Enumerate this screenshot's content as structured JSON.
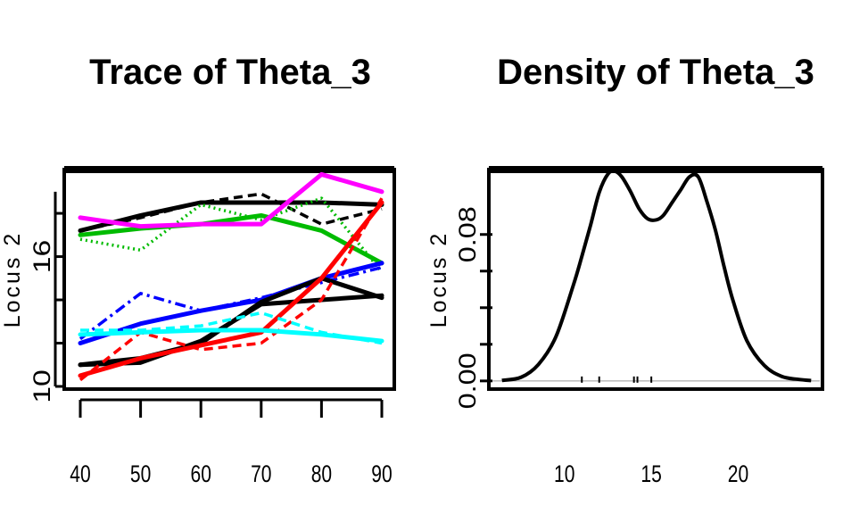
{
  "chart_data": [
    {
      "type": "line",
      "title": "Trace of Theta_3",
      "xlabel": "",
      "ylabel": "Locus 2",
      "x_ticks": [
        "40",
        "50",
        "60",
        "70",
        "80",
        "90"
      ],
      "y_ticks": [
        "10",
        "16"
      ],
      "xlim": [
        40,
        90
      ],
      "ylim": [
        10,
        19.9
      ],
      "x": [
        40,
        50,
        60,
        70,
        80,
        90
      ],
      "series": [
        {
          "color": "#000000",
          "style": "solid",
          "values": [
            17.2,
            17.9,
            18.5,
            18.5,
            18.5,
            18.4
          ]
        },
        {
          "color": "#000000",
          "style": "dashed",
          "values": [
            17.2,
            17.8,
            18.5,
            18.9,
            17.5,
            18.2
          ]
        },
        {
          "color": "#00bb00",
          "style": "solid",
          "values": [
            17.0,
            17.3,
            17.5,
            17.9,
            17.2,
            15.7
          ]
        },
        {
          "color": "#00bb00",
          "style": "dotted",
          "values": [
            16.8,
            16.3,
            18.4,
            17.7,
            18.7,
            15.3
          ]
        },
        {
          "color": "#ff00ff",
          "style": "solid",
          "values": [
            17.8,
            17.4,
            17.5,
            17.5,
            19.8,
            19.0
          ]
        },
        {
          "color": "#0000ff",
          "style": "solid",
          "values": [
            12.0,
            12.9,
            13.5,
            14.0,
            15.0,
            15.7
          ]
        },
        {
          "color": "#0000ff",
          "style": "dashdot",
          "values": [
            12.2,
            14.3,
            13.5,
            14.1,
            14.8,
            15.5
          ]
        },
        {
          "color": "#000000",
          "style": "solid",
          "values": [
            11.0,
            11.1,
            12.1,
            13.8,
            14.0,
            14.2
          ]
        },
        {
          "color": "#000000",
          "style": "solid",
          "values": [
            11.0,
            11.3,
            12.0,
            13.9,
            15.0,
            14.1
          ]
        },
        {
          "color": "#ff0000",
          "style": "solid",
          "values": [
            10.5,
            11.3,
            11.9,
            12.5,
            15.0,
            18.5
          ]
        },
        {
          "color": "#ff0000",
          "style": "dashed",
          "values": [
            10.3,
            12.5,
            11.7,
            12.0,
            14.0,
            18.7
          ]
        },
        {
          "color": "#00ffff",
          "style": "solid",
          "values": [
            12.4,
            12.5,
            12.6,
            12.6,
            12.4,
            12.1
          ]
        },
        {
          "color": "#00ffff",
          "style": "dashed",
          "values": [
            12.6,
            12.6,
            12.8,
            13.4,
            12.5,
            12.0
          ]
        }
      ]
    },
    {
      "type": "line",
      "title": "Density of Theta_3",
      "xlabel": "",
      "ylabel": "Locus 2",
      "x_ticks": [
        "10",
        "15",
        "20"
      ],
      "y_ticks": [
        "0.00",
        "0.08"
      ],
      "xlim": [
        5.8,
        24.7
      ],
      "ylim": [
        -0.003,
        0.114
      ],
      "density": {
        "x": [
          6.4,
          7.5,
          8.5,
          9.5,
          10.5,
          11.0,
          11.5,
          12.0,
          12.5,
          12.9,
          13.3,
          13.8,
          14.3,
          14.8,
          15.3,
          15.7,
          16.2,
          16.7,
          17.2,
          17.7,
          18.2,
          18.7,
          19.2,
          19.7,
          20.5,
          21.5,
          22.5,
          23.5,
          24.2
        ],
        "y": [
          0.0003,
          0.002,
          0.009,
          0.024,
          0.052,
          0.068,
          0.085,
          0.103,
          0.113,
          0.1145,
          0.1115,
          0.1035,
          0.094,
          0.0885,
          0.088,
          0.0905,
          0.0975,
          0.1045,
          0.1115,
          0.1115,
          0.098,
          0.082,
          0.062,
          0.044,
          0.022,
          0.0085,
          0.0025,
          0.0008,
          0.0002
        ]
      },
      "rug": [
        11.0,
        12.0,
        14.0,
        14.2,
        15.0
      ]
    }
  ]
}
